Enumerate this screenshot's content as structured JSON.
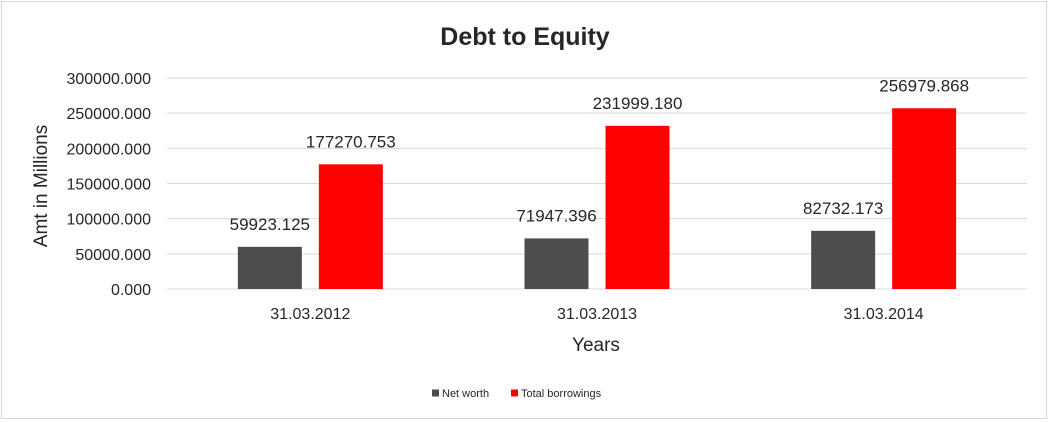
{
  "chart_data": {
    "type": "bar",
    "title": "Debt to Equity",
    "xlabel": "Years",
    "ylabel": "Amt in Millions",
    "categories": [
      "31.03.2012",
      "31.03.2013",
      "31.03.2014"
    ],
    "series": [
      {
        "name": "Net worth",
        "color": "#4d4d4d",
        "values": [
          59923.125,
          71947.396,
          82732.173
        ],
        "labels": [
          "59923.125",
          "71947.396",
          "82732.173"
        ]
      },
      {
        "name": "Total borrowings",
        "color": "#ff0000",
        "values": [
          177270.753,
          231999.18,
          256979.868
        ],
        "labels": [
          "177270.753",
          "231999.180",
          "256979.868"
        ]
      }
    ],
    "ylim": [
      0,
      300000
    ],
    "yticks": [
      "0.000",
      "50000.000",
      "100000.000",
      "150000.000",
      "200000.000",
      "250000.000",
      "300000.000"
    ],
    "grid": true,
    "legend": "bottom"
  }
}
